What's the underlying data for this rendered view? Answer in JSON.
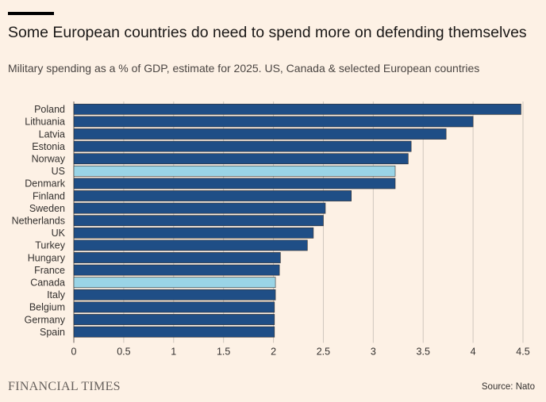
{
  "title": "Some European countries do need to spend more on defending themselves",
  "subtitle": "Military spending as a % of GDP, estimate for 2025. US, Canada & selected European countries",
  "logo_text": "FINANCIAL TIMES",
  "source": "Source: Nato",
  "colors": {
    "background": "#fdf1e5",
    "bar": "#1f4e86",
    "highlight": "#9ad4e6",
    "grid": "#cfc6bd"
  },
  "chart_data": {
    "type": "bar",
    "orientation": "horizontal",
    "title": "Some European countries do need to spend more on defending themselves",
    "xlabel": "",
    "ylabel": "",
    "xlim": [
      0,
      4.5
    ],
    "xticks": [
      0,
      0.5,
      1,
      1.5,
      2,
      2.5,
      3,
      3.5,
      4,
      4.5
    ],
    "xtick_labels": [
      "0",
      "0.5",
      "1",
      "1.5",
      "2",
      "2.5",
      "3",
      "3.5",
      "4",
      "4.5"
    ],
    "grid": true,
    "categories": [
      "Poland",
      "Lithuania",
      "Latvia",
      "Estonia",
      "Norway",
      "US",
      "Denmark",
      "Finland",
      "Sweden",
      "Netherlands",
      "UK",
      "Turkey",
      "Hungary",
      "France",
      "Canada",
      "Italy",
      "Belgium",
      "Germany",
      "Spain"
    ],
    "values": [
      4.48,
      4.0,
      3.73,
      3.38,
      3.35,
      3.22,
      3.22,
      2.78,
      2.52,
      2.5,
      2.4,
      2.34,
      2.07,
      2.06,
      2.02,
      2.02,
      2.01,
      2.01,
      2.01
    ],
    "highlighted": [
      "US",
      "Canada"
    ]
  }
}
